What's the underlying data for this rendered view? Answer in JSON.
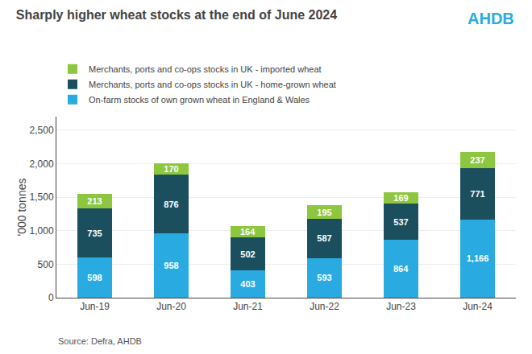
{
  "chart_data": {
    "type": "bar",
    "title": "Sharply higher wheat stocks at the end of June 2024",
    "categories": [
      "Jun-19",
      "Jun-20",
      "Jun-21",
      "Jun-22",
      "Jun-23",
      "Jun-24"
    ],
    "series": [
      {
        "name": "On-farm stocks of own grown wheat in England & Wales",
        "color": "#29ABE2",
        "values": [
          598,
          958,
          403,
          593,
          864,
          1166
        ],
        "value_labels": [
          "598",
          "958",
          "403",
          "593",
          "864",
          "1,166"
        ]
      },
      {
        "name": "Merchants, ports and co-ops stocks in UK - home-grown wheat",
        "color": "#1B4F5E",
        "values": [
          735,
          876,
          502,
          587,
          537,
          771
        ],
        "value_labels": [
          "735",
          "876",
          "502",
          "587",
          "537",
          "771"
        ]
      },
      {
        "name": "Merchants, ports and co-ops stocks in UK - imported wheat",
        "color": "#8DC63F",
        "values": [
          213,
          170,
          164,
          195,
          169,
          237
        ],
        "value_labels": [
          "213",
          "170",
          "164",
          "195",
          "169",
          "237"
        ]
      }
    ],
    "ylabel": "'000 tonnes",
    "ylim": [
      0,
      2700
    ],
    "yticks": [
      0,
      500,
      {
        "value": 1000,
        "label": "1,000"
      },
      {
        "value": 1500,
        "label": "1,500"
      },
      {
        "value": 2000,
        "label": "2,000"
      },
      {
        "value": 2500,
        "label": "2,500"
      }
    ],
    "stacked": true,
    "data_labels": true,
    "grid": true,
    "legend": "upper left",
    "annotations": [
      "AHDB",
      "Source: Defra, AHDB"
    ]
  }
}
